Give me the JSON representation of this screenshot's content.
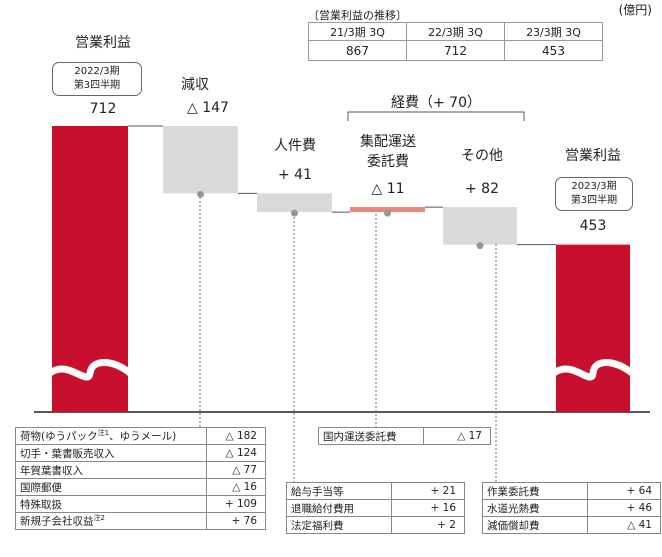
{
  "unit": "(億円)",
  "trend": {
    "title": "〔営業利益の推移〕",
    "headers": [
      "21/3期 3Q",
      "22/3期 3Q",
      "23/3期 3Q"
    ],
    "values": [
      "867",
      "712",
      "453"
    ]
  },
  "labels": {
    "start_title": "営業利益",
    "start_period": "2022/3期\n第3四半期",
    "start_value": "712",
    "revenue_title": "減収",
    "revenue_value": "△ 147",
    "personnel_title": "人件費",
    "personnel_value": "+ 41",
    "expense_group": "経費（+ 70）",
    "delivery_title": "集配運送\n委託費",
    "delivery_value": "△ 11",
    "other_title": "その他",
    "other_value": "+ 82",
    "end_title": "営業利益",
    "end_period": "2023/3期\n第3四半期",
    "end_value": "453"
  },
  "details": {
    "revenue": [
      {
        "label": "荷物(ゆうパック",
        "note": "注1",
        "label2": "、ゆうメール)",
        "value": "△ 182"
      },
      {
        "label": "切手・葉書販売収入",
        "value": "△ 124"
      },
      {
        "label": "年賀葉書収入",
        "value": "△ 77"
      },
      {
        "label": "国際郵便",
        "value": "△ 16"
      },
      {
        "label": "特殊取扱",
        "value": "+ 109"
      },
      {
        "label": "新規子会社収益",
        "note": "注2",
        "value": "+ 76"
      }
    ],
    "personnel": [
      {
        "label": "給与手当等",
        "value": "+ 21"
      },
      {
        "label": "退職給付費用",
        "value": "+ 16"
      },
      {
        "label": "法定福利費",
        "value": "+ 2"
      }
    ],
    "delivery": [
      {
        "label": "国内運送委託費",
        "value": "△ 17"
      }
    ],
    "other": [
      {
        "label": "作業委託費",
        "value": "+ 64"
      },
      {
        "label": "水道光熱費",
        "value": "+ 46"
      },
      {
        "label": "減価償却費",
        "value": "△ 41"
      }
    ]
  },
  "colors": {
    "total": "#c8102e",
    "decrease": "#d9d9d9",
    "delivery": "#e8877a",
    "connector": "#555555",
    "dot": "#999999"
  },
  "chart_data": {
    "type": "bar",
    "subtype": "waterfall",
    "categories": [
      "営業利益 2022/3期 第3四半期",
      "減収",
      "人件費",
      "集配運送委託費",
      "その他",
      "営業利益 2023/3期 第3四半期"
    ],
    "values": [
      712,
      -147,
      -41,
      11,
      -82,
      453
    ],
    "printed_values": [
      "712",
      "△ 147",
      "+ 41",
      "△ 11",
      "+ 82",
      "453"
    ],
    "kind": [
      "total",
      "delta",
      "delta",
      "delta",
      "delta",
      "total"
    ],
    "axis_broken": true
  }
}
